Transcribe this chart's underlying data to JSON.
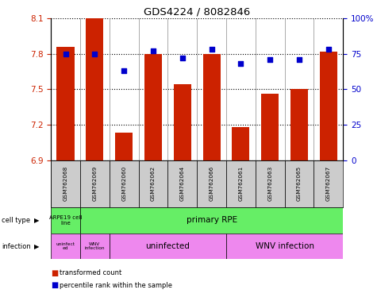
{
  "title": "GDS4224 / 8082846",
  "samples": [
    "GSM762068",
    "GSM762069",
    "GSM762060",
    "GSM762062",
    "GSM762064",
    "GSM762066",
    "GSM762061",
    "GSM762063",
    "GSM762065",
    "GSM762067"
  ],
  "transformed_count": [
    7.86,
    8.1,
    7.13,
    7.8,
    7.54,
    7.8,
    7.18,
    7.46,
    7.5,
    7.82
  ],
  "percentile_rank": [
    75,
    75,
    63,
    77,
    72,
    78,
    68,
    71,
    71,
    78
  ],
  "ylim_left": [
    6.9,
    8.1
  ],
  "yticks_left": [
    6.9,
    7.2,
    7.5,
    7.8,
    8.1
  ],
  "ylim_right": [
    0,
    100
  ],
  "yticks_right": [
    0,
    25,
    50,
    75,
    100
  ],
  "yticklabels_right": [
    "0",
    "25",
    "50",
    "75",
    "100%"
  ],
  "bar_color": "#cc2200",
  "dot_color": "#0000cc",
  "bar_bottom": 6.9,
  "grid_color": "black",
  "grid_linestyle": "dotted",
  "label_color_left": "#cc2200",
  "label_color_right": "#0000cc",
  "green_color": "#66ee66",
  "magenta_color": "#ee88ee",
  "gray_color": "#cccccc"
}
